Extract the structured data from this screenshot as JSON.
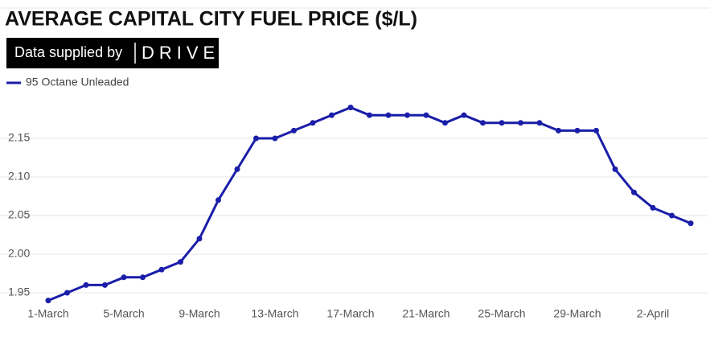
{
  "chart_data": {
    "type": "line",
    "title": "AVERAGE CAPITAL CITY FUEL PRICE ($/L)",
    "source_label": "Data supplied by",
    "source_logo": "DRIVE",
    "categories": [
      "1-March",
      null,
      null,
      null,
      "5-March",
      null,
      null,
      null,
      "9-March",
      null,
      null,
      null,
      "13-March",
      null,
      null,
      null,
      "17-March",
      null,
      null,
      null,
      "21-March",
      null,
      null,
      null,
      "25-March",
      null,
      null,
      null,
      "29-March",
      null,
      null,
      null,
      "2-April",
      null,
      null
    ],
    "series": [
      {
        "name": "95 Octane Unleaded",
        "color": "#1a1ea8",
        "values": [
          1.94,
          1.95,
          1.96,
          1.96,
          1.97,
          1.97,
          1.98,
          1.99,
          2.02,
          2.07,
          2.11,
          2.15,
          2.15,
          2.16,
          2.17,
          2.18,
          2.19,
          2.18,
          2.18,
          2.18,
          2.18,
          2.17,
          2.18,
          2.17,
          2.17,
          2.17,
          2.17,
          2.16,
          2.16,
          2.16,
          2.11,
          2.08,
          2.06,
          2.05,
          2.04
        ]
      }
    ],
    "ylim": [
      1.935,
      2.2
    ],
    "yticks": [
      1.95,
      {
        "value": 2.0,
        "label": "2.00"
      },
      2.05,
      {
        "value": 2.1,
        "label": "2.10"
      },
      2.15
    ],
    "grid": true,
    "legend": "top-left"
  }
}
